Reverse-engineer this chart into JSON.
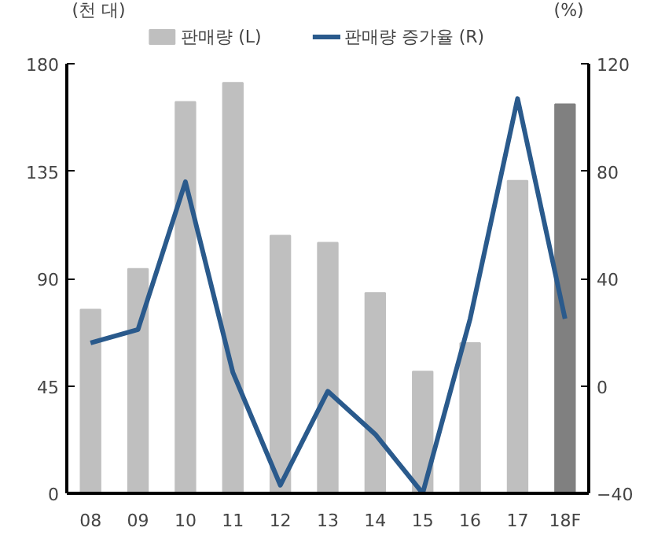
{
  "chart_data": {
    "type": "bar",
    "ylabel": "(천 대)",
    "y2label": "(%)",
    "categories": [
      "08",
      "09",
      "10",
      "11",
      "12",
      "13",
      "14",
      "15",
      "16",
      "17",
      "18F"
    ],
    "series": [
      {
        "name": "판매량 (L)",
        "color": "#bfbfbf",
        "colors": [
          "#bfbfbf",
          "#bfbfbf",
          "#bfbfbf",
          "#bfbfbf",
          "#bfbfbf",
          "#bfbfbf",
          "#bfbfbf",
          "#bfbfbf",
          "#bfbfbf",
          "#bfbfbf",
          "#808080"
        ],
        "values": [
          77,
          94,
          164,
          172,
          108,
          105,
          84,
          51,
          63,
          131,
          163
        ]
      },
      {
        "name": "판매량 증가율 (R)",
        "type": "line",
        "axis": "y2",
        "color": "#2a5a8c",
        "values": [
          16,
          21,
          76,
          5,
          -37,
          -2,
          -18,
          -40,
          25,
          107,
          25
        ]
      }
    ],
    "ylim": [
      0,
      180
    ],
    "yticks": [
      0,
      45,
      90,
      135,
      180
    ],
    "y2lim": [
      -40,
      120
    ],
    "y2ticks": [
      -40,
      0,
      40,
      80,
      120
    ],
    "grid": false,
    "legend": "top"
  }
}
